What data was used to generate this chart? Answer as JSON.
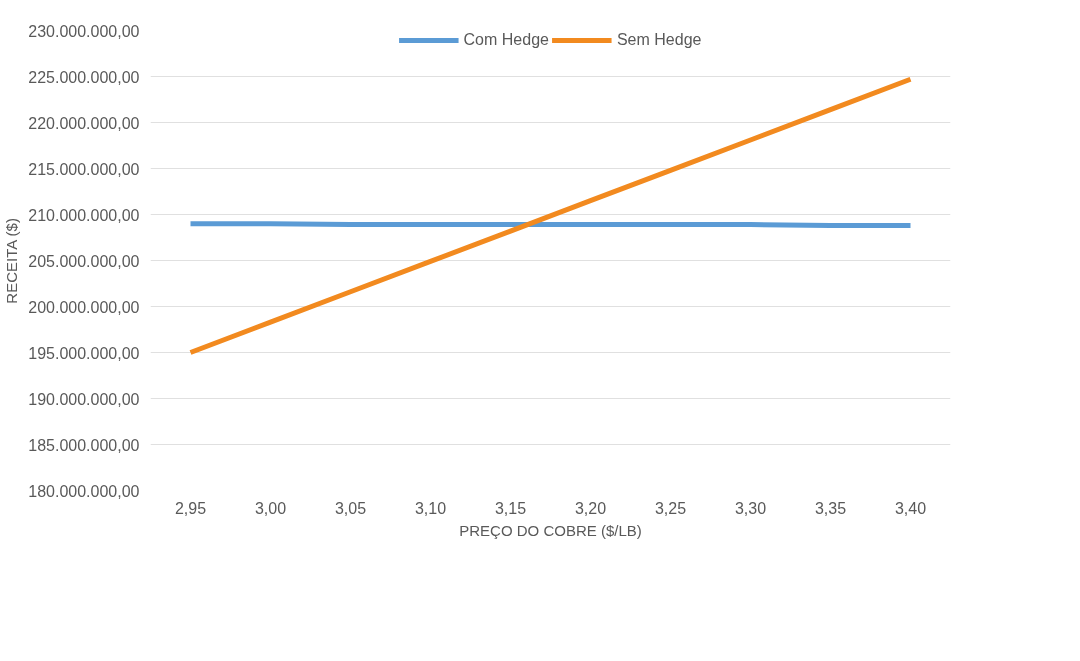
{
  "chart_data": {
    "type": "line",
    "xlabel": "PREÇO DO COBRE ($/LB)",
    "ylabel": "RECEITA ($)",
    "categories": [
      "2,95",
      "3,00",
      "3,05",
      "3,10",
      "3,15",
      "3,20",
      "3,25",
      "3,30",
      "3,35",
      "3,40"
    ],
    "series": [
      {
        "name": "Com Hedge",
        "color": "#5b9bd5",
        "values": [
          209000000,
          209000000,
          208900000,
          208900000,
          208900000,
          208900000,
          208900000,
          208900000,
          208800000,
          208800000
        ]
      },
      {
        "name": "Sem Hedge",
        "color": "#f28a1f",
        "values": [
          195000000,
          198300000,
          201600000,
          204900000,
          208200000,
          211500000,
          214800000,
          218100000,
          221400000,
          224700000
        ]
      }
    ],
    "ylim": [
      180000000,
      230000000
    ],
    "yticks": [
      {
        "value": 180000000,
        "label": "180.000.000,00"
      },
      {
        "value": 185000000,
        "label": "185.000.000,00"
      },
      {
        "value": 190000000,
        "label": "190.000.000,00"
      },
      {
        "value": 195000000,
        "label": "195.000.000,00"
      },
      {
        "value": 200000000,
        "label": "200.000.000,00"
      },
      {
        "value": 205000000,
        "label": "205.000.000,00"
      },
      {
        "value": 210000000,
        "label": "210.000.000,00"
      },
      {
        "value": 215000000,
        "label": "215.000.000,00"
      },
      {
        "value": 220000000,
        "label": "220.000.000,00"
      },
      {
        "value": 225000000,
        "label": "225.000.000,00"
      },
      {
        "value": 230000000,
        "label": "230.000.000,00"
      }
    ],
    "grid": "y",
    "legend": "top",
    "marker": "none",
    "line_style": "solid"
  }
}
